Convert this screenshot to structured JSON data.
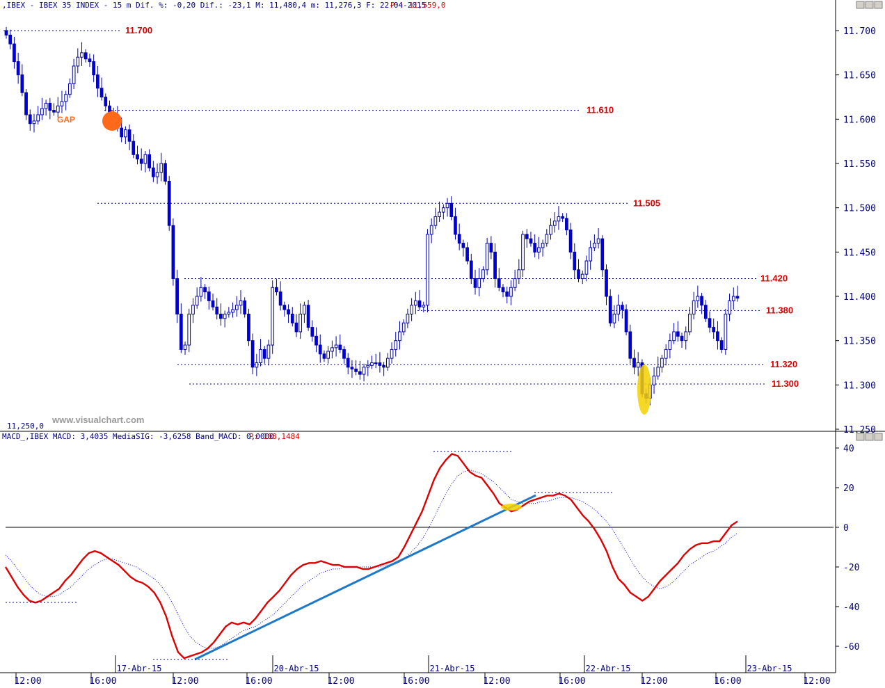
{
  "header": {
    "price_info": ",IBEX - IBEX 35 INDEX -  15 m Dif. %: -0,20 Dif.: -23,1 M: 11,480,4 m: 11,276,3 F: 22-04-2015",
    "price_last": "P : 11,559,0",
    "macd_info": "MACD_,IBEX MACD: 3,4035 MediaSIG: -3,6258 Band_MACD: 0,0000",
    "macd_last": "P: 108,1484",
    "watermark": "www.visualchart.com",
    "low_label": "11,250,0"
  },
  "annotations": {
    "gap_label": "GAP"
  },
  "colors": {
    "bull": "#ffffff",
    "bear": "#0000dd",
    "level_line": "#00008b",
    "level_text": "#dd0000",
    "macd": "#dd0000",
    "signal": "#0000cc",
    "trendline": "#1e78c8",
    "gap_marker": "#ff6a1a",
    "highlight": "#f5d000"
  },
  "chart_data": [
    {
      "type": "candlestick",
      "title": "IBEX 35 INDEX 15 m",
      "y_ticks": [
        "11.700",
        "11.650",
        "11.600",
        "11.550",
        "11.500",
        "11.450",
        "11.400",
        "11.350",
        "11.300",
        "11.250"
      ],
      "ylim": [
        11250,
        11720
      ],
      "levels": [
        {
          "label": "11.700",
          "value": 11700
        },
        {
          "label": "11.610",
          "value": 11610
        },
        {
          "label": "11.505",
          "value": 11505
        },
        {
          "label": "11.420",
          "value": 11420
        },
        {
          "label": "11.380",
          "value": 11384
        },
        {
          "label": "11.320",
          "value": 11323
        },
        {
          "label": "11.300",
          "value": 11301
        }
      ],
      "closes": [
        11695,
        11685,
        11665,
        11650,
        11630,
        11605,
        11595,
        11598,
        11605,
        11612,
        11618,
        11610,
        11608,
        11615,
        11620,
        11628,
        11640,
        11660,
        11670,
        11675,
        11668,
        11665,
        11650,
        11635,
        11625,
        11615,
        11605,
        11605,
        11590,
        11580,
        11588,
        11575,
        11560,
        11555,
        11550,
        11560,
        11545,
        11535,
        11540,
        11550,
        11530,
        11480,
        11420,
        11380,
        11340,
        11345,
        11380,
        11390,
        11400,
        11410,
        11405,
        11395,
        11388,
        11380,
        11375,
        11380,
        11382,
        11385,
        11390,
        11395,
        11380,
        11350,
        11320,
        11325,
        11340,
        11330,
        11345,
        11410,
        11405,
        11390,
        11385,
        11380,
        11370,
        11360,
        11380,
        11390,
        11365,
        11355,
        11345,
        11335,
        11330,
        11338,
        11342,
        11345,
        11340,
        11330,
        11320,
        11318,
        11315,
        11312,
        11320,
        11322,
        11325,
        11325,
        11322,
        11320,
        11330,
        11340,
        11350,
        11360,
        11370,
        11380,
        11390,
        11395,
        11388,
        11390,
        11470,
        11480,
        11490,
        11495,
        11500,
        11505,
        11490,
        11470,
        11460,
        11455,
        11440,
        11420,
        11410,
        11420,
        11430,
        11460,
        11450,
        11420,
        11410,
        11405,
        11400,
        11410,
        11420,
        11430,
        11470,
        11465,
        11460,
        11450,
        11455,
        11460,
        11470,
        11480,
        11485,
        11490,
        11488,
        11475,
        11450,
        11430,
        11420,
        11425,
        11440,
        11455,
        11460,
        11465,
        11430,
        11400,
        11370,
        11380,
        11390,
        11385,
        11360,
        11330,
        11320,
        11325,
        11290,
        11285,
        11300,
        11310,
        11320,
        11330,
        11340,
        11350,
        11360,
        11355,
        11350,
        11360,
        11380,
        11395,
        11400,
        11390,
        11375,
        11365,
        11360,
        11350,
        11340,
        11380,
        11395,
        11400,
        11398
      ],
      "macd": [
        -20,
        -25,
        -30,
        -34,
        -37,
        -38,
        -37,
        -35,
        -33,
        -31,
        -27,
        -24,
        -20,
        -16,
        -13,
        -12,
        -13,
        -15,
        -17,
        -19,
        -22,
        -25,
        -27,
        -28,
        -30,
        -33,
        -38,
        -45,
        -55,
        -63,
        -66,
        -65,
        -64,
        -63,
        -61,
        -58,
        -54,
        -50,
        -48,
        -49,
        -48,
        -49,
        -46,
        -42,
        -38,
        -35,
        -32,
        -28,
        -24,
        -21,
        -19,
        -18,
        -18,
        -17,
        -18,
        -19,
        -19,
        -20,
        -20,
        -20,
        -21,
        -21,
        -20,
        -19,
        -18,
        -17,
        -15,
        -10,
        -4,
        2,
        8,
        16,
        24,
        30,
        34,
        37,
        36,
        32,
        28,
        26,
        25,
        21,
        17,
        12,
        10,
        8,
        9,
        11,
        13,
        14,
        15,
        16,
        16,
        17,
        16,
        14,
        10,
        6,
        3,
        -1,
        -6,
        -12,
        -20,
        -26,
        -29,
        -33,
        -35,
        -37,
        -35,
        -31,
        -27,
        -24,
        -21,
        -18,
        -14,
        -11,
        -9,
        -8,
        -8,
        -7,
        -7,
        -3,
        1,
        3
      ],
      "signal": [
        -14,
        -17,
        -21,
        -25,
        -29,
        -32,
        -34,
        -35,
        -35,
        -34,
        -32,
        -30,
        -27,
        -24,
        -21,
        -19,
        -17,
        -16,
        -16,
        -17,
        -18,
        -19,
        -20,
        -22,
        -24,
        -26,
        -29,
        -33,
        -38,
        -44,
        -50,
        -55,
        -58,
        -60,
        -61,
        -61,
        -60,
        -58,
        -56,
        -54,
        -52,
        -51,
        -50,
        -48,
        -46,
        -44,
        -41,
        -38,
        -35,
        -32,
        -29,
        -27,
        -25,
        -23,
        -22,
        -21,
        -21,
        -20,
        -20,
        -20,
        -20,
        -20,
        -20,
        -20,
        -19,
        -19,
        -18,
        -16,
        -13,
        -10,
        -6,
        -1,
        5,
        11,
        17,
        22,
        26,
        28,
        29,
        28,
        27,
        25,
        23,
        20,
        17,
        14,
        13,
        12,
        12,
        12,
        13,
        13,
        14,
        15,
        15,
        15,
        14,
        13,
        11,
        9,
        6,
        3,
        -1,
        -6,
        -11,
        -16,
        -21,
        -25,
        -28,
        -30,
        -31,
        -30,
        -28,
        -25,
        -22,
        -19,
        -17,
        -15,
        -13,
        -12,
        -10,
        -8,
        -5,
        -3
      ],
      "macd_ticks": [
        40,
        20,
        0,
        -20,
        -40,
        -60
      ],
      "macd_ylim": [
        -67,
        41
      ],
      "x_labels": [
        "12:00",
        "17-Abr-15",
        "16:00",
        "12:00",
        "20-Abr-15",
        "16:00",
        "12:00",
        "21-Abr-15",
        "16:00",
        "12:00",
        "22-Abr-15",
        "16:00",
        "12:00",
        "23-Abr-15",
        "16:00",
        "12:00"
      ]
    }
  ]
}
